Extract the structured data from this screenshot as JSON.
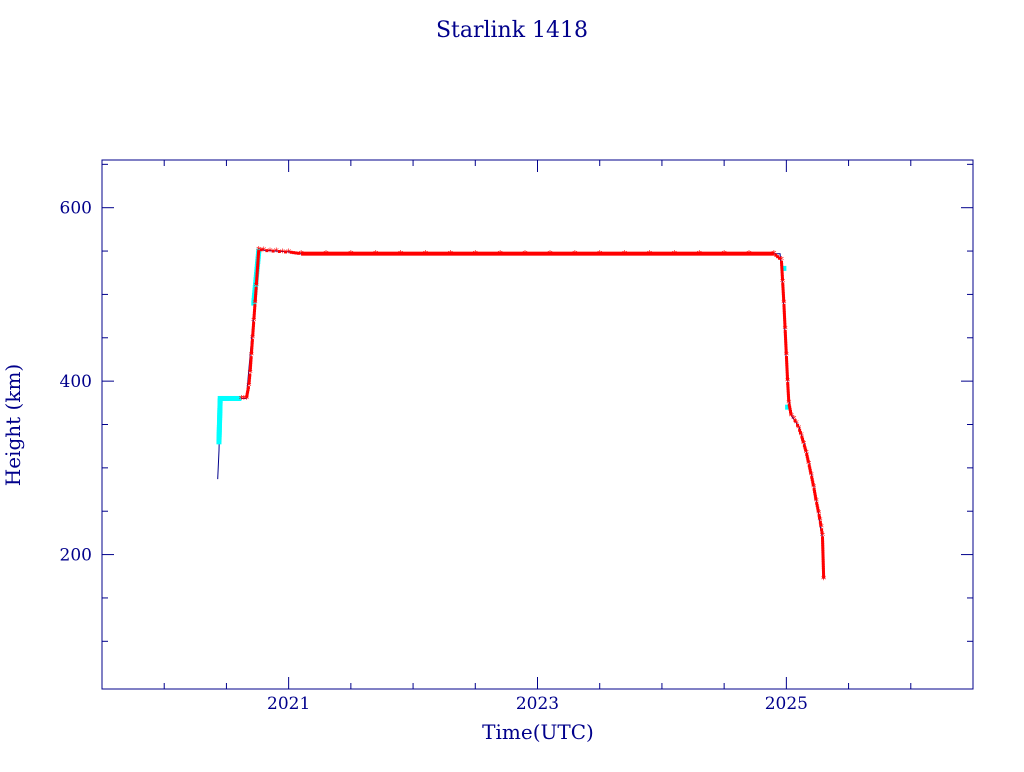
{
  "chart_data": {
    "type": "scatter",
    "title": "Starlink 1418",
    "xlabel": "Time(UTC)",
    "ylabel": "Height (km)",
    "xlim": [
      2019.5,
      2026.5
    ],
    "ylim": [
      45,
      655
    ],
    "x_ticks": [
      2021,
      2023,
      2025
    ],
    "x_tick_labels": [
      "2021",
      "2023",
      "2025"
    ],
    "y_ticks": [
      200,
      400,
      600
    ],
    "y_tick_labels": [
      "200",
      "400",
      "600"
    ],
    "grid": false,
    "legend": "none",
    "colors": {
      "axes": "#00008b",
      "line": "#00008b",
      "red_points": "#ff0000",
      "cyan_points": "#00ffff",
      "background": "#ffffff"
    },
    "series": [
      {
        "marker": "line",
        "color": "#00008b",
        "x": [
          2020.43,
          2020.44,
          2020.45,
          2020.5,
          2020.6,
          2020.66,
          2020.7,
          2020.74,
          2020.76,
          2020.8,
          2021.0,
          2021.05,
          2022.0,
          2023.0,
          2024.0,
          2024.95,
          2024.97,
          2025.0,
          2025.03,
          2025.05,
          2025.1,
          2025.15,
          2025.2,
          2025.25,
          2025.28,
          2025.295,
          2025.3
        ],
        "y": [
          287,
          320,
          380,
          380,
          380,
          380,
          445,
          515,
          553,
          551,
          549,
          547,
          547,
          547,
          547,
          547,
          510,
          420,
          365,
          358,
          348,
          325,
          295,
          255,
          225,
          218,
          172
        ]
      },
      {
        "marker": "point",
        "color": "#00ffff",
        "x": [
          2020.44,
          2020.445,
          2020.45,
          2020.46,
          2020.48,
          2020.5,
          2020.52,
          2020.55,
          2020.58,
          2020.6,
          2020.72,
          2020.73,
          2020.74,
          2020.75,
          2020.76,
          2024.98,
          2025.01
        ],
        "y": [
          330,
          355,
          380,
          380,
          380,
          380,
          380,
          380,
          380,
          380,
          490,
          505,
          520,
          535,
          550,
          530,
          370
        ]
      },
      {
        "marker": "star",
        "color": "#ff0000",
        "x": [
          2020.62,
          2020.64,
          2020.66,
          2020.68,
          2020.69,
          2020.7,
          2020.71,
          2020.72,
          2020.73,
          2020.74,
          2020.76,
          2020.8,
          2020.85,
          2020.9,
          2020.95,
          2021.0,
          2021.1,
          2021.3,
          2021.5,
          2021.7,
          2021.9,
          2022.1,
          2022.3,
          2022.5,
          2022.7,
          2022.9,
          2023.1,
          2023.3,
          2023.5,
          2023.7,
          2023.9,
          2024.1,
          2024.3,
          2024.5,
          2024.7,
          2024.9,
          2024.96,
          2024.97,
          2024.98,
          2024.99,
          2025.0,
          2025.01,
          2025.02,
          2025.04,
          2025.06,
          2025.08,
          2025.1,
          2025.12,
          2025.14,
          2025.16,
          2025.18,
          2025.2,
          2025.22,
          2025.24,
          2025.26,
          2025.27,
          2025.28,
          2025.29,
          2025.3
        ],
        "y": [
          380,
          380,
          380,
          395,
          410,
          430,
          450,
          470,
          490,
          510,
          552,
          551,
          550,
          550,
          549,
          549,
          547,
          547,
          547,
          547,
          547,
          547,
          547,
          547,
          547,
          547,
          547,
          547,
          547,
          547,
          547,
          547,
          547,
          547,
          547,
          547,
          540,
          515,
          490,
          460,
          430,
          400,
          375,
          360,
          357,
          352,
          346,
          338,
          328,
          318,
          305,
          292,
          278,
          262,
          248,
          240,
          232,
          222,
          172
        ]
      }
    ]
  }
}
